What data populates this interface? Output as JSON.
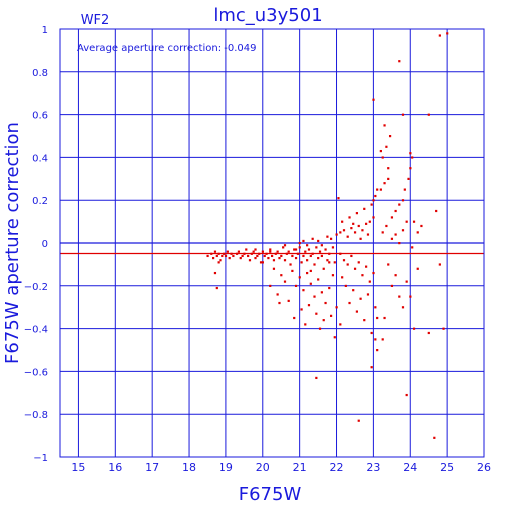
{
  "chart_data": {
    "type": "scatter",
    "title": "lmc_u3y501",
    "subtitle": "WF2",
    "annotation": "Average aperture correction: -0.049",
    "xlabel": "F675W",
    "ylabel": "F675W aperture correction",
    "xlim": [
      14.5,
      26
    ],
    "ylim": [
      -1,
      1
    ],
    "grid": true,
    "xticks": [
      "15",
      "16",
      "17",
      "18",
      "19",
      "20",
      "21",
      "22",
      "23",
      "24",
      "25",
      "26"
    ],
    "yticks": [
      "1",
      "0.8",
      "0.6",
      "0.4",
      "0.2",
      "0",
      "−0.2",
      "−0.4",
      "−0.6",
      "−0.8",
      "−1"
    ],
    "mean_line": -0.049,
    "zero_line": 0,
    "colors": {
      "axes": "#1a1adc",
      "points": "#e00000",
      "mean_line": "#e00000"
    },
    "series": [
      {
        "points": [
          [
            18.5,
            -0.06
          ],
          [
            18.6,
            -0.05
          ],
          [
            18.65,
            -0.07
          ],
          [
            18.7,
            -0.04
          ],
          [
            18.75,
            -0.06
          ],
          [
            18.8,
            -0.05
          ],
          [
            18.85,
            -0.08
          ],
          [
            18.9,
            -0.06
          ],
          [
            18.7,
            -0.14
          ],
          [
            18.75,
            -0.21
          ],
          [
            18.8,
            -0.09
          ],
          [
            18.95,
            -0.05
          ],
          [
            19.0,
            -0.06
          ],
          [
            19.05,
            -0.04
          ],
          [
            19.1,
            -0.07
          ],
          [
            19.15,
            -0.05
          ],
          [
            19.2,
            -0.06
          ],
          [
            19.3,
            -0.05
          ],
          [
            19.35,
            -0.04
          ],
          [
            19.4,
            -0.07
          ],
          [
            19.45,
            -0.06
          ],
          [
            19.5,
            -0.05
          ],
          [
            19.55,
            -0.03
          ],
          [
            19.6,
            -0.06
          ],
          [
            19.65,
            -0.08
          ],
          [
            19.7,
            -0.05
          ],
          [
            19.75,
            -0.04
          ],
          [
            19.8,
            -0.07
          ],
          [
            19.85,
            -0.06
          ],
          [
            19.9,
            -0.05
          ],
          [
            19.95,
            -0.09
          ],
          [
            20.0,
            -0.04
          ],
          [
            20.05,
            -0.06
          ],
          [
            20.1,
            -0.05
          ],
          [
            20.15,
            -0.07
          ],
          [
            20.2,
            -0.03
          ],
          [
            20.25,
            -0.06
          ],
          [
            20.3,
            -0.08
          ],
          [
            20.35,
            -0.05
          ],
          [
            20.4,
            -0.04
          ],
          [
            20.45,
            -0.07
          ],
          [
            20.5,
            -0.06
          ],
          [
            20.55,
            -0.02
          ],
          [
            20.6,
            -0.08
          ],
          [
            20.65,
            -0.05
          ],
          [
            20.7,
            -0.04
          ],
          [
            20.75,
            -0.1
          ],
          [
            20.8,
            -0.06
          ],
          [
            20.85,
            -0.03
          ],
          [
            20.9,
            -0.07
          ],
          [
            20.95,
            -0.05
          ],
          [
            21.0,
            -0.02
          ],
          [
            21.05,
            -0.09
          ],
          [
            21.1,
            -0.06
          ],
          [
            21.15,
            -0.04
          ],
          [
            21.2,
            -0.08
          ],
          [
            21.25,
            -0.03
          ],
          [
            21.3,
            -0.06
          ],
          [
            21.35,
            -0.05
          ],
          [
            21.4,
            -0.1
          ],
          [
            21.45,
            -0.02
          ],
          [
            21.5,
            -0.07
          ],
          [
            21.55,
            -0.04
          ],
          [
            21.6,
            -0.06
          ],
          [
            21.65,
            -0.12
          ],
          [
            21.7,
            -0.03
          ],
          [
            21.75,
            -0.08
          ],
          [
            21.8,
            -0.05
          ],
          [
            21.9,
            -0.02
          ],
          [
            21.95,
            -0.09
          ],
          [
            20.3,
            -0.12
          ],
          [
            20.5,
            -0.15
          ],
          [
            20.6,
            -0.18
          ],
          [
            20.8,
            -0.13
          ],
          [
            20.9,
            -0.2
          ],
          [
            21.0,
            -0.16
          ],
          [
            21.1,
            -0.22
          ],
          [
            21.2,
            -0.14
          ],
          [
            21.3,
            -0.19
          ],
          [
            21.4,
            -0.25
          ],
          [
            21.5,
            -0.17
          ],
          [
            21.6,
            -0.23
          ],
          [
            21.7,
            -0.28
          ],
          [
            21.8,
            -0.21
          ],
          [
            21.9,
            -0.15
          ],
          [
            22.0,
            -0.3
          ],
          [
            20.4,
            -0.24
          ],
          [
            20.7,
            -0.27
          ],
          [
            21.05,
            -0.31
          ],
          [
            21.25,
            -0.29
          ],
          [
            21.45,
            -0.33
          ],
          [
            21.65,
            -0.36
          ],
          [
            21.85,
            -0.34
          ],
          [
            22.1,
            -0.38
          ],
          [
            20.2,
            -0.2
          ],
          [
            20.45,
            -0.28
          ],
          [
            20.85,
            -0.35
          ],
          [
            21.15,
            -0.38
          ],
          [
            21.55,
            -0.4
          ],
          [
            21.95,
            -0.44
          ],
          [
            20.9,
            -0.03
          ],
          [
            21.0,
            0.0
          ],
          [
            21.1,
            0.01
          ],
          [
            21.2,
            -0.01
          ],
          [
            21.35,
            0.02
          ],
          [
            21.5,
            0.01
          ],
          [
            21.6,
            -0.01
          ],
          [
            21.75,
            0.03
          ],
          [
            21.85,
            0.02
          ],
          [
            22.0,
            0.04
          ],
          [
            22.1,
            0.05
          ],
          [
            22.2,
            0.06
          ],
          [
            22.3,
            0.03
          ],
          [
            22.4,
            0.07
          ],
          [
            22.5,
            0.05
          ],
          [
            22.6,
            0.08
          ],
          [
            22.7,
            0.06
          ],
          [
            22.8,
            0.09
          ],
          [
            22.9,
            0.1
          ],
          [
            23.0,
            0.12
          ],
          [
            22.15,
            0.1
          ],
          [
            22.35,
            0.12
          ],
          [
            22.55,
            0.14
          ],
          [
            22.75,
            0.16
          ],
          [
            22.95,
            0.18
          ],
          [
            23.0,
            0.2
          ],
          [
            23.05,
            0.22
          ],
          [
            23.1,
            0.25
          ],
          [
            22.05,
            0.21
          ],
          [
            22.45,
            0.09
          ],
          [
            22.65,
            0.02
          ],
          [
            22.85,
            0.04
          ],
          [
            22.1,
            -0.05
          ],
          [
            22.2,
            -0.08
          ],
          [
            22.3,
            -0.1
          ],
          [
            22.4,
            -0.06
          ],
          [
            22.5,
            -0.12
          ],
          [
            22.6,
            -0.09
          ],
          [
            22.7,
            -0.15
          ],
          [
            22.8,
            -0.11
          ],
          [
            22.9,
            -0.18
          ],
          [
            23.0,
            -0.14
          ],
          [
            22.25,
            -0.2
          ],
          [
            22.45,
            -0.22
          ],
          [
            22.65,
            -0.26
          ],
          [
            22.85,
            -0.24
          ],
          [
            23.05,
            -0.3
          ],
          [
            22.15,
            -0.16
          ],
          [
            22.35,
            -0.28
          ],
          [
            22.55,
            -0.32
          ],
          [
            22.75,
            -0.36
          ],
          [
            22.95,
            -0.42
          ],
          [
            23.1,
            -0.5
          ],
          [
            22.95,
            -0.58
          ],
          [
            23.05,
            -0.45
          ],
          [
            23.2,
            0.25
          ],
          [
            23.3,
            0.28
          ],
          [
            23.4,
            0.3
          ],
          [
            23.25,
            0.4
          ],
          [
            23.35,
            0.45
          ],
          [
            23.45,
            0.5
          ],
          [
            23.2,
            0.43
          ],
          [
            23.3,
            0.55
          ],
          [
            23.4,
            0.35
          ],
          [
            23.25,
            0.05
          ],
          [
            23.35,
            0.08
          ],
          [
            23.5,
            0.02
          ],
          [
            23.6,
            0.04
          ],
          [
            23.7,
            0.0
          ],
          [
            23.8,
            0.06
          ],
          [
            23.9,
            0.1
          ],
          [
            23.4,
            -0.1
          ],
          [
            23.5,
            -0.2
          ],
          [
            23.6,
            -0.15
          ],
          [
            23.7,
            -0.25
          ],
          [
            23.8,
            -0.3
          ],
          [
            23.9,
            -0.18
          ],
          [
            23.3,
            -0.35
          ],
          [
            23.25,
            -0.45
          ],
          [
            23.5,
            0.12
          ],
          [
            23.6,
            0.15
          ],
          [
            23.7,
            0.18
          ],
          [
            23.8,
            0.2
          ],
          [
            23.85,
            0.25
          ],
          [
            23.95,
            0.3
          ],
          [
            24.0,
            0.35
          ],
          [
            24.05,
            0.4
          ],
          [
            23.7,
            0.85
          ],
          [
            23.8,
            0.6
          ],
          [
            24.0,
            0.42
          ],
          [
            24.05,
            -0.02
          ],
          [
            24.1,
            0.1
          ],
          [
            24.2,
            0.05
          ],
          [
            24.3,
            0.08
          ],
          [
            24.5,
            0.6
          ],
          [
            24.2,
            -0.12
          ],
          [
            24.0,
            -0.25
          ],
          [
            24.1,
            -0.4
          ],
          [
            24.5,
            -0.42
          ],
          [
            24.7,
            0.15
          ],
          [
            24.8,
            -0.1
          ],
          [
            24.9,
            -0.4
          ],
          [
            24.8,
            0.97
          ],
          [
            25.0,
            0.98
          ],
          [
            23.9,
            -0.71
          ],
          [
            24.65,
            -0.91
          ],
          [
            22.6,
            -0.83
          ],
          [
            21.45,
            -0.63
          ],
          [
            23.1,
            -0.35
          ],
          [
            23.0,
            0.67
          ],
          [
            19.8,
            -0.03
          ],
          [
            20.0,
            -0.09
          ],
          [
            20.2,
            -0.04
          ],
          [
            20.6,
            -0.01
          ],
          [
            21.3,
            -0.13
          ],
          [
            21.8,
            -0.09
          ]
        ]
      }
    ]
  }
}
